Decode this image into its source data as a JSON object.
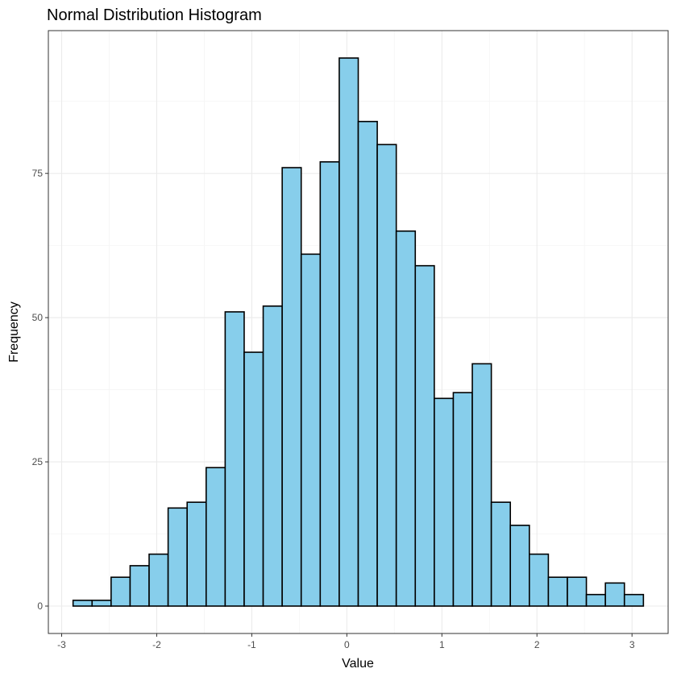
{
  "chart_data": {
    "type": "bar",
    "title": "Normal Distribution Histogram",
    "xlabel": "Value",
    "ylabel": "Frequency",
    "bin_width": 0.2,
    "xlim": [
      -3.14,
      3.38
    ],
    "ylim": [
      -4.75,
      99.75
    ],
    "x_ticks": [
      -3,
      -2,
      -1,
      0,
      1,
      2,
      3
    ],
    "x_tick_labels": [
      "-3",
      "-2",
      "-1",
      "0",
      "1",
      "2",
      "3"
    ],
    "y_ticks": [
      0,
      25,
      50,
      75
    ],
    "y_tick_labels": [
      "0",
      "25",
      "50",
      "75"
    ],
    "grid": true,
    "legend": "none",
    "bins": [
      {
        "x": -2.78,
        "count": 1
      },
      {
        "x": -2.58,
        "count": 1
      },
      {
        "x": -2.38,
        "count": 5
      },
      {
        "x": -2.18,
        "count": 7
      },
      {
        "x": -1.98,
        "count": 9
      },
      {
        "x": -1.78,
        "count": 17
      },
      {
        "x": -1.58,
        "count": 18
      },
      {
        "x": -1.38,
        "count": 24
      },
      {
        "x": -1.18,
        "count": 51
      },
      {
        "x": -0.98,
        "count": 44
      },
      {
        "x": -0.78,
        "count": 52
      },
      {
        "x": -0.58,
        "count": 76
      },
      {
        "x": -0.38,
        "count": 61
      },
      {
        "x": -0.18,
        "count": 77
      },
      {
        "x": 0.02,
        "count": 95
      },
      {
        "x": 0.22,
        "count": 84
      },
      {
        "x": 0.42,
        "count": 80
      },
      {
        "x": 0.62,
        "count": 65
      },
      {
        "x": 0.82,
        "count": 59
      },
      {
        "x": 1.02,
        "count": 36
      },
      {
        "x": 1.22,
        "count": 37
      },
      {
        "x": 1.42,
        "count": 42
      },
      {
        "x": 1.62,
        "count": 18
      },
      {
        "x": 1.82,
        "count": 14
      },
      {
        "x": 2.02,
        "count": 9
      },
      {
        "x": 2.22,
        "count": 5
      },
      {
        "x": 2.42,
        "count": 5
      },
      {
        "x": 2.62,
        "count": 2
      },
      {
        "x": 2.82,
        "count": 4
      },
      {
        "x": 3.02,
        "count": 2
      }
    ],
    "colors": {
      "fill": "#87ceeb",
      "stroke": "#000000",
      "grid_major": "#ebebeb",
      "grid_minor": "#f5f5f5",
      "panel_border": "#333333",
      "tick": "#333333"
    }
  }
}
